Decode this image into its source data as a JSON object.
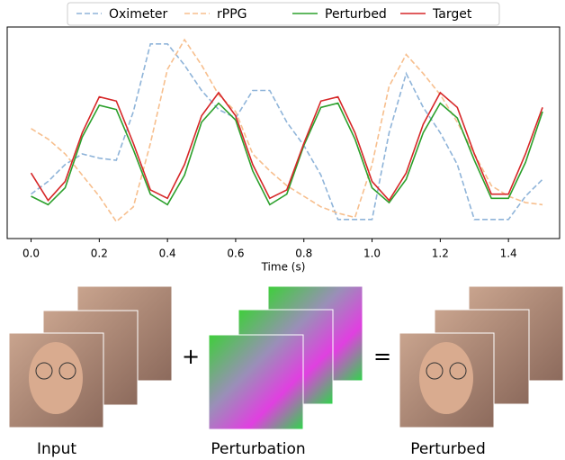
{
  "chart_data": {
    "type": "line",
    "xlabel": "Time (s)",
    "x": [
      0,
      0.05,
      0.1,
      0.15,
      0.2,
      0.25,
      0.3,
      0.35,
      0.4,
      0.45,
      0.5,
      0.55,
      0.6,
      0.65,
      0.7,
      0.75,
      0.8,
      0.85,
      0.9,
      0.95,
      1.0,
      1.05,
      1.1,
      1.15,
      1.2,
      1.25,
      1.3,
      1.35,
      1.4,
      1.45,
      1.5
    ],
    "series": [
      {
        "name": "Oximeter",
        "color": "#8fb4d9",
        "linestyle": "dashed",
        "values": [
          0.21,
          0.27,
          0.35,
          0.4,
          0.38,
          0.37,
          0.6,
          0.92,
          0.92,
          0.82,
          0.7,
          0.61,
          0.57,
          0.7,
          0.7,
          0.55,
          0.44,
          0.3,
          0.09,
          0.09,
          0.09,
          0.5,
          0.78,
          0.62,
          0.5,
          0.35,
          0.09,
          0.09,
          0.09,
          0.2,
          0.28
        ]
      },
      {
        "name": "rPPG",
        "color": "#f7bf8e",
        "linestyle": "dashed",
        "values": [
          0.52,
          0.47,
          0.4,
          0.3,
          0.2,
          0.08,
          0.15,
          0.45,
          0.8,
          0.94,
          0.82,
          0.68,
          0.6,
          0.4,
          0.32,
          0.25,
          0.2,
          0.15,
          0.12,
          0.1,
          0.35,
          0.72,
          0.87,
          0.78,
          0.68,
          0.55,
          0.4,
          0.25,
          0.2,
          0.17,
          0.16
        ]
      },
      {
        "name": "Perturbed",
        "color": "#2ca02c",
        "linestyle": "solid",
        "values": [
          0.2,
          0.16,
          0.24,
          0.48,
          0.63,
          0.61,
          0.42,
          0.21,
          0.16,
          0.3,
          0.55,
          0.64,
          0.56,
          0.32,
          0.16,
          0.21,
          0.44,
          0.62,
          0.64,
          0.47,
          0.24,
          0.17,
          0.28,
          0.5,
          0.64,
          0.57,
          0.37,
          0.19,
          0.19,
          0.36,
          0.6
        ]
      },
      {
        "name": "Target",
        "color": "#d62728",
        "linestyle": "solid",
        "values": [
          0.31,
          0.18,
          0.27,
          0.5,
          0.67,
          0.65,
          0.45,
          0.23,
          0.19,
          0.35,
          0.58,
          0.69,
          0.58,
          0.35,
          0.19,
          0.23,
          0.45,
          0.65,
          0.67,
          0.5,
          0.27,
          0.18,
          0.31,
          0.54,
          0.69,
          0.62,
          0.4,
          0.21,
          0.21,
          0.4,
          0.62
        ]
      }
    ],
    "xlim": [
      -0.07,
      1.55
    ],
    "ylim": [
      0,
      1
    ],
    "xticks": [
      {
        "value": 0,
        "label": "0.0"
      },
      0.2,
      0.4,
      0.6,
      0.8,
      {
        "value": 1,
        "label": "1.0"
      },
      1.2,
      1.4
    ],
    "legend": "top"
  },
  "diagram": {
    "panels": [
      {
        "label": "Input"
      },
      {
        "label": "Perturbation"
      },
      {
        "label": "Perturbed"
      }
    ],
    "operators": [
      "+",
      "="
    ]
  }
}
